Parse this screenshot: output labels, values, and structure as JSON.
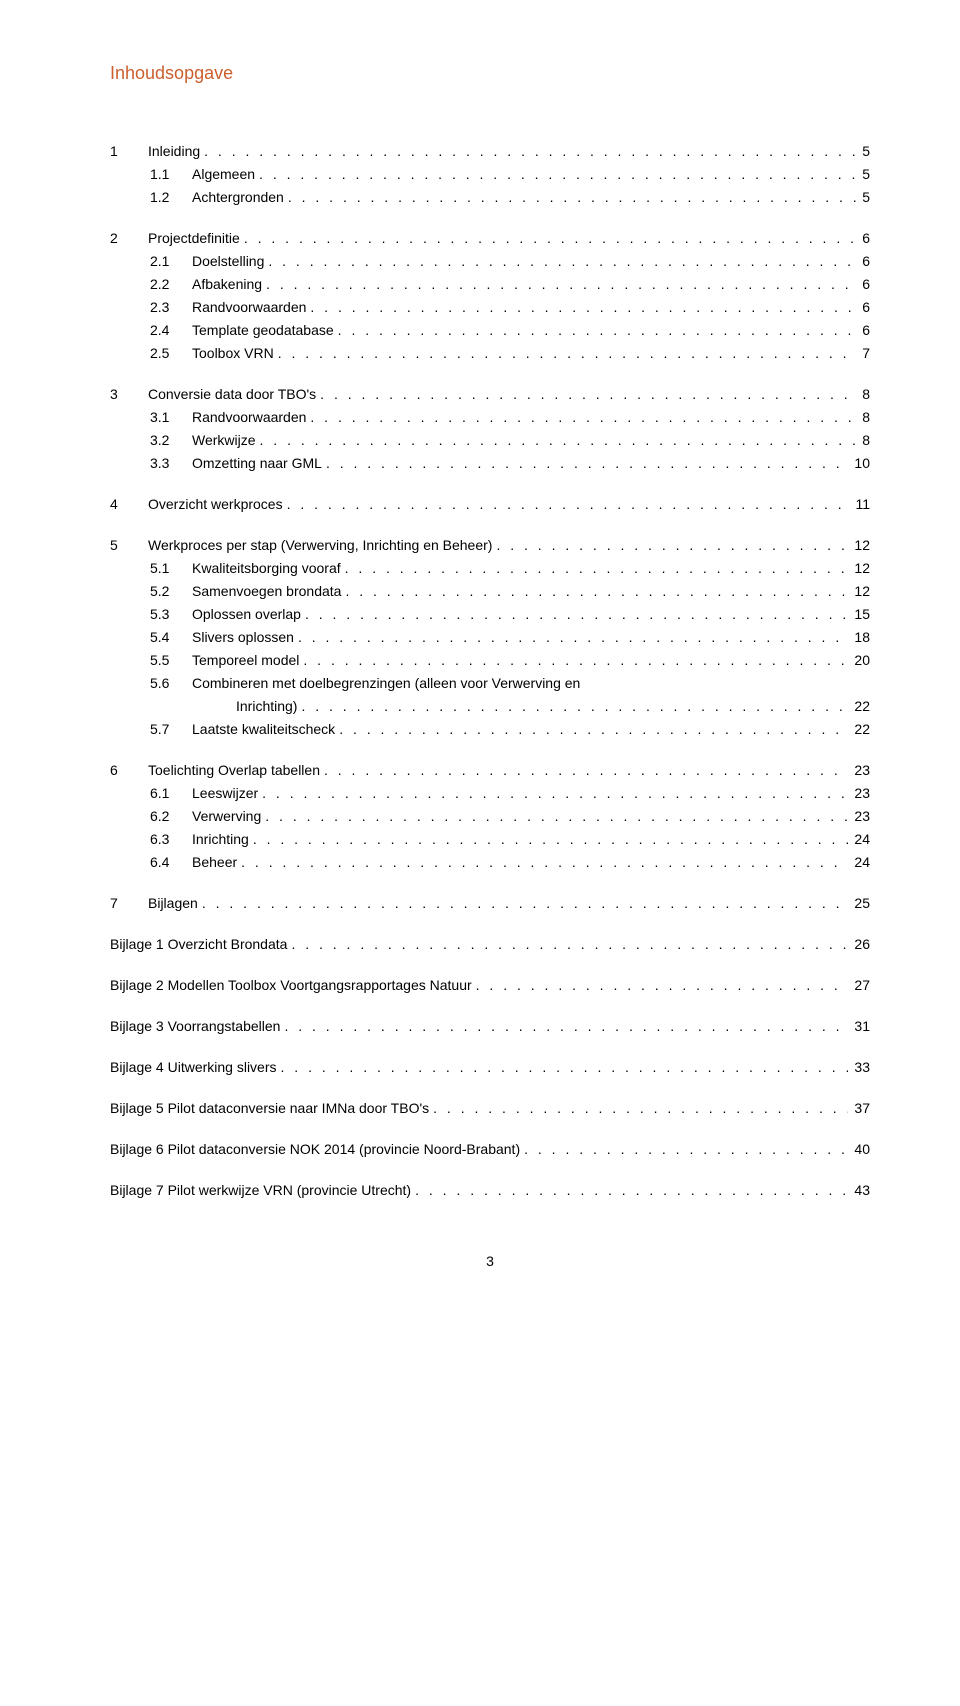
{
  "title": "Inhoudsopgave",
  "dots": ". . . . . . . . . . . . . . . . . . . . . . . . . . . . . . . . . . . . . . . . . . . . . . . . . . . . . . . . . . . . . . . . . . . . . . . . . . . . . . . . . . . . . . . . . . . . . . . . . . . . . . . . . . . . . . . . . . . . . . . .",
  "pageNumber": "3",
  "entries": [
    {
      "num": "1",
      "text": "Inleiding",
      "page": "5",
      "indent": 0,
      "spaceBefore": true
    },
    {
      "num": "1.1",
      "text": "Algemeen",
      "page": "5",
      "indent": 1
    },
    {
      "num": "1.2",
      "text": "Achtergronden",
      "page": "5",
      "indent": 1
    },
    {
      "num": "2",
      "text": "Projectdefinitie",
      "page": "6",
      "indent": 0,
      "spaceBefore": true
    },
    {
      "num": "2.1",
      "text": "Doelstelling",
      "page": "6",
      "indent": 1
    },
    {
      "num": "2.2",
      "text": "Afbakening",
      "page": "6",
      "indent": 1
    },
    {
      "num": "2.3",
      "text": "Randvoorwaarden",
      "page": "6",
      "indent": 1
    },
    {
      "num": "2.4",
      "text": "Template geodatabase",
      "page": "6",
      "indent": 1
    },
    {
      "num": "2.5",
      "text": "Toolbox VRN",
      "page": "7",
      "indent": 1
    },
    {
      "num": "3",
      "text": "Conversie data door TBO's",
      "page": "8",
      "indent": 0,
      "spaceBefore": true
    },
    {
      "num": "3.1",
      "text": "Randvoorwaarden",
      "page": "8",
      "indent": 1
    },
    {
      "num": "3.2",
      "text": "Werkwijze",
      "page": "8",
      "indent": 1
    },
    {
      "num": "3.3",
      "text": "Omzetting naar GML",
      "page": "10",
      "indent": 1
    },
    {
      "num": "4",
      "text": "Overzicht werkproces",
      "page": "11",
      "indent": 0,
      "spaceBefore": true
    },
    {
      "num": "5",
      "text": "Werkproces per stap (Verwerving, Inrichting en Beheer)",
      "page": "12",
      "indent": 0,
      "spaceBefore": true
    },
    {
      "num": "5.1",
      "text": "Kwaliteitsborging vooraf",
      "page": "12",
      "indent": 1
    },
    {
      "num": "5.2",
      "text": "Samenvoegen brondata",
      "page": "12",
      "indent": 1
    },
    {
      "num": "5.3",
      "text": "Oplossen overlap",
      "page": "15",
      "indent": 1
    },
    {
      "num": "5.4",
      "text": "Slivers oplossen",
      "page": "18",
      "indent": 1
    },
    {
      "num": "5.5",
      "text": "Temporeel model",
      "page": "20",
      "indent": 1
    },
    {
      "num": "5.6",
      "text": "Combineren met doelbegrenzingen (alleen voor Verwerving en",
      "indent": 1,
      "noPage": true
    },
    {
      "text": "Inrichting)",
      "page": "22",
      "indent": 2,
      "hang": true
    },
    {
      "num": "5.7",
      "text": "Laatste kwaliteitscheck",
      "page": "22",
      "indent": 1
    },
    {
      "num": "6",
      "text": "Toelichting Overlap tabellen",
      "page": "23",
      "indent": 0,
      "spaceBefore": true
    },
    {
      "num": "6.1",
      "text": "Leeswijzer",
      "page": "23",
      "indent": 1
    },
    {
      "num": "6.2",
      "text": "Verwerving",
      "page": "23",
      "indent": 1
    },
    {
      "num": "6.3",
      "text": "Inrichting",
      "page": "24",
      "indent": 1
    },
    {
      "num": "6.4",
      "text": "Beheer",
      "page": "24",
      "indent": 1
    },
    {
      "num": "7",
      "text": "Bijlagen",
      "page": "25",
      "indent": 0,
      "spaceBefore": true
    },
    {
      "text": "Bijlage 1 Overzicht Brondata",
      "page": "26",
      "indent": 0,
      "spaceBefore": true,
      "noNum": true
    },
    {
      "text": "Bijlage 2 Modellen Toolbox Voortgangsrapportages Natuur",
      "page": "27",
      "indent": 0,
      "spaceBefore": true,
      "noNum": true
    },
    {
      "text": "Bijlage 3 Voorrangstabellen",
      "page": "31",
      "indent": 0,
      "spaceBefore": true,
      "noNum": true
    },
    {
      "text": "Bijlage 4 Uitwerking slivers",
      "page": "33",
      "indent": 0,
      "spaceBefore": true,
      "noNum": true
    },
    {
      "text": "Bijlage 5 Pilot dataconversie naar IMNa door TBO's",
      "page": "37",
      "indent": 0,
      "spaceBefore": true,
      "noNum": true
    },
    {
      "text": "Bijlage 6 Pilot dataconversie NOK 2014 (provincie Noord-Brabant)",
      "page": "40",
      "indent": 0,
      "spaceBefore": true,
      "noNum": true
    },
    {
      "text": "Bijlage 7 Pilot werkwijze VRN (provincie Utrecht)",
      "page": "43",
      "indent": 0,
      "spaceBefore": true,
      "noNum": true
    }
  ]
}
